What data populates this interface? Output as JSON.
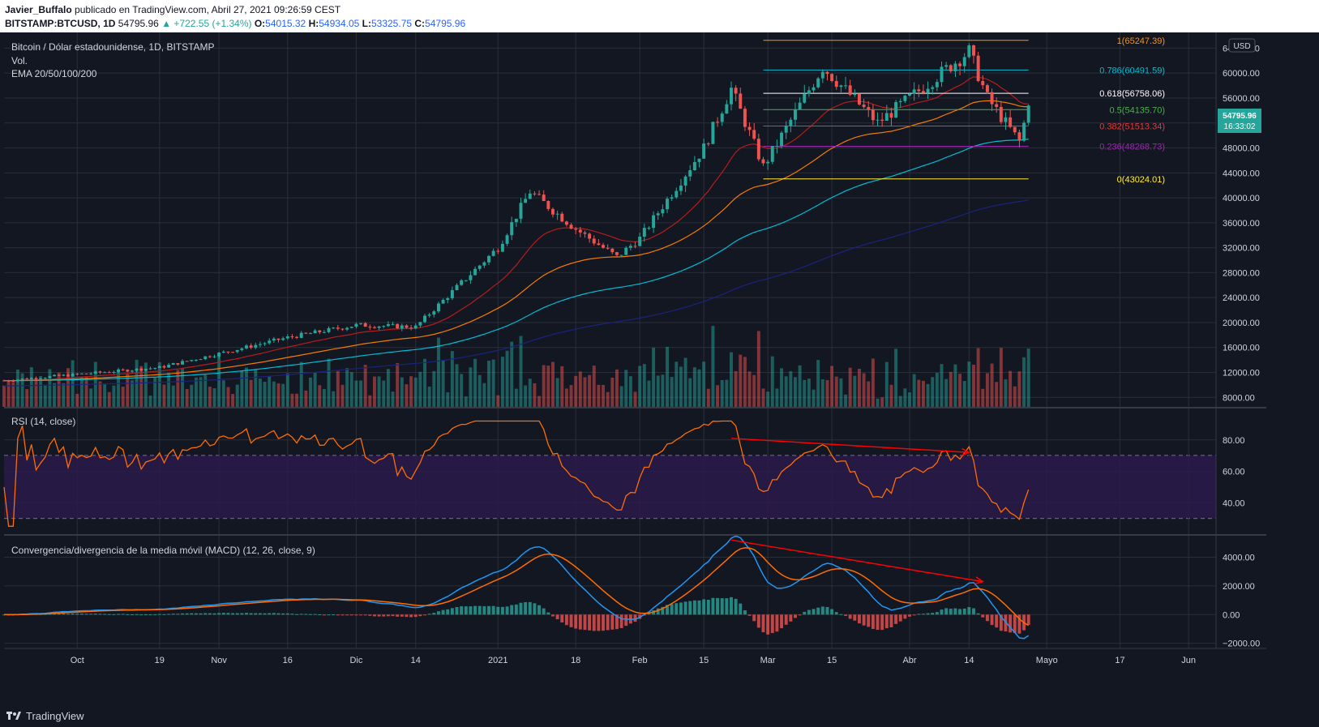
{
  "header": {
    "author": "Javier_Buffalo",
    "published": "publicado en TradingView.com, Abril 27, 2021 09:26:59 CEST",
    "symbol": "BITSTAMP:BTCUSD, 1D",
    "last": "54795.96",
    "change": "▲ +722.55 (+1.34%)",
    "o_label": "O:",
    "o": "54015.32",
    "h_label": "H:",
    "h": "54934.05",
    "l_label": "L:",
    "l": "53325.75",
    "c_label": "C:",
    "c": "54795.96"
  },
  "legend": {
    "title": "Bitcoin / Dólar estadounidense, 1D, BITSTAMP",
    "vol": "Vol.",
    "ema": "EMA 20/50/100/200"
  },
  "price_axis": {
    "currency": "USD",
    "ticks": [
      "64000.00",
      "60000.00",
      "56000.00",
      "52000.00",
      "48000.00",
      "44000.00",
      "40000.00",
      "36000.00",
      "32000.00",
      "28000.00",
      "24000.00",
      "20000.00",
      "16000.00",
      "12000.00",
      "8000.00"
    ],
    "last_price": "54795.96",
    "countdown": "16:33:02"
  },
  "time_axis": [
    "Oct",
    "19",
    "Nov",
    "16",
    "Dic",
    "14",
    "2021",
    "18",
    "Feb",
    "15",
    "Mar",
    "15",
    "Abr",
    "14",
    "Mayo",
    "17",
    "Jun"
  ],
  "fib_levels": [
    {
      "label": "1(65247.39)",
      "value": 65247.39,
      "color": "#f7931a"
    },
    {
      "label": "0.786(60491.59)",
      "value": 60491.59,
      "color": "#00bcd4"
    },
    {
      "label": "0.618(56758.06)",
      "value": 56758.06,
      "color": "#ffffff"
    },
    {
      "label": "0.5(54135.70)",
      "value": 54135.7,
      "color": "#4caf50"
    },
    {
      "label": "0.382(51513.34)",
      "value": 51513.34,
      "color": "#e53935"
    },
    {
      "label": "0.236(48268.73)",
      "value": 48268.73,
      "color": "#9c27b0"
    },
    {
      "label": "0(43024.01)",
      "value": 43024.01,
      "color": "#ffeb3b"
    }
  ],
  "rsi": {
    "title": "RSI (14, close)",
    "ticks": [
      "80.00",
      "60.00",
      "40.00"
    ]
  },
  "macd": {
    "title": "Convergencia/divergencia de la media móvil (MACD) (12, 26, close, 9)",
    "ticks": [
      "4000.00",
      "2000.00",
      "0.00",
      "−2000.00"
    ]
  },
  "colors": {
    "bg": "#131722",
    "up": "#26a69a",
    "down": "#ef5350",
    "grid": "#2a2e39",
    "ema20": "#b71c1c",
    "ema50": "#f57c00",
    "ema100": "#00bcd4",
    "ema200": "#1a237e",
    "rsi": "#ff6d00",
    "macd": "#2196f3",
    "signal": "#ff6d00",
    "arrow": "#ff0000"
  },
  "chart_data": {
    "type": "candlestick",
    "x_range": [
      "2020-09-15",
      "2021-06-07"
    ],
    "ylim": [
      7000,
      66000
    ],
    "key_points": [
      {
        "date": "2020-09-15",
        "close": 10700
      },
      {
        "date": "2020-10-19",
        "close": 12800
      },
      {
        "date": "2020-11-16",
        "close": 17600
      },
      {
        "date": "2020-12-01",
        "close": 19600
      },
      {
        "date": "2020-12-14",
        "close": 19300
      },
      {
        "date": "2021-01-01",
        "close": 32000
      },
      {
        "date": "2021-01-08",
        "close": 41000
      },
      {
        "date": "2021-01-18",
        "close": 35000
      },
      {
        "date": "2021-01-27",
        "close": 30500
      },
      {
        "date": "2021-02-01",
        "close": 33500
      },
      {
        "date": "2021-02-15",
        "close": 48000
      },
      {
        "date": "2021-02-21",
        "close": 57500
      },
      {
        "date": "2021-02-28",
        "close": 45000
      },
      {
        "date": "2021-03-13",
        "close": 61000
      },
      {
        "date": "2021-03-25",
        "close": 52000
      },
      {
        "date": "2021-04-14",
        "close": 63500
      },
      {
        "date": "2021-04-18",
        "close": 56000
      },
      {
        "date": "2021-04-25",
        "close": 49000
      },
      {
        "date": "2021-04-27",
        "close": 54795.96
      }
    ]
  }
}
